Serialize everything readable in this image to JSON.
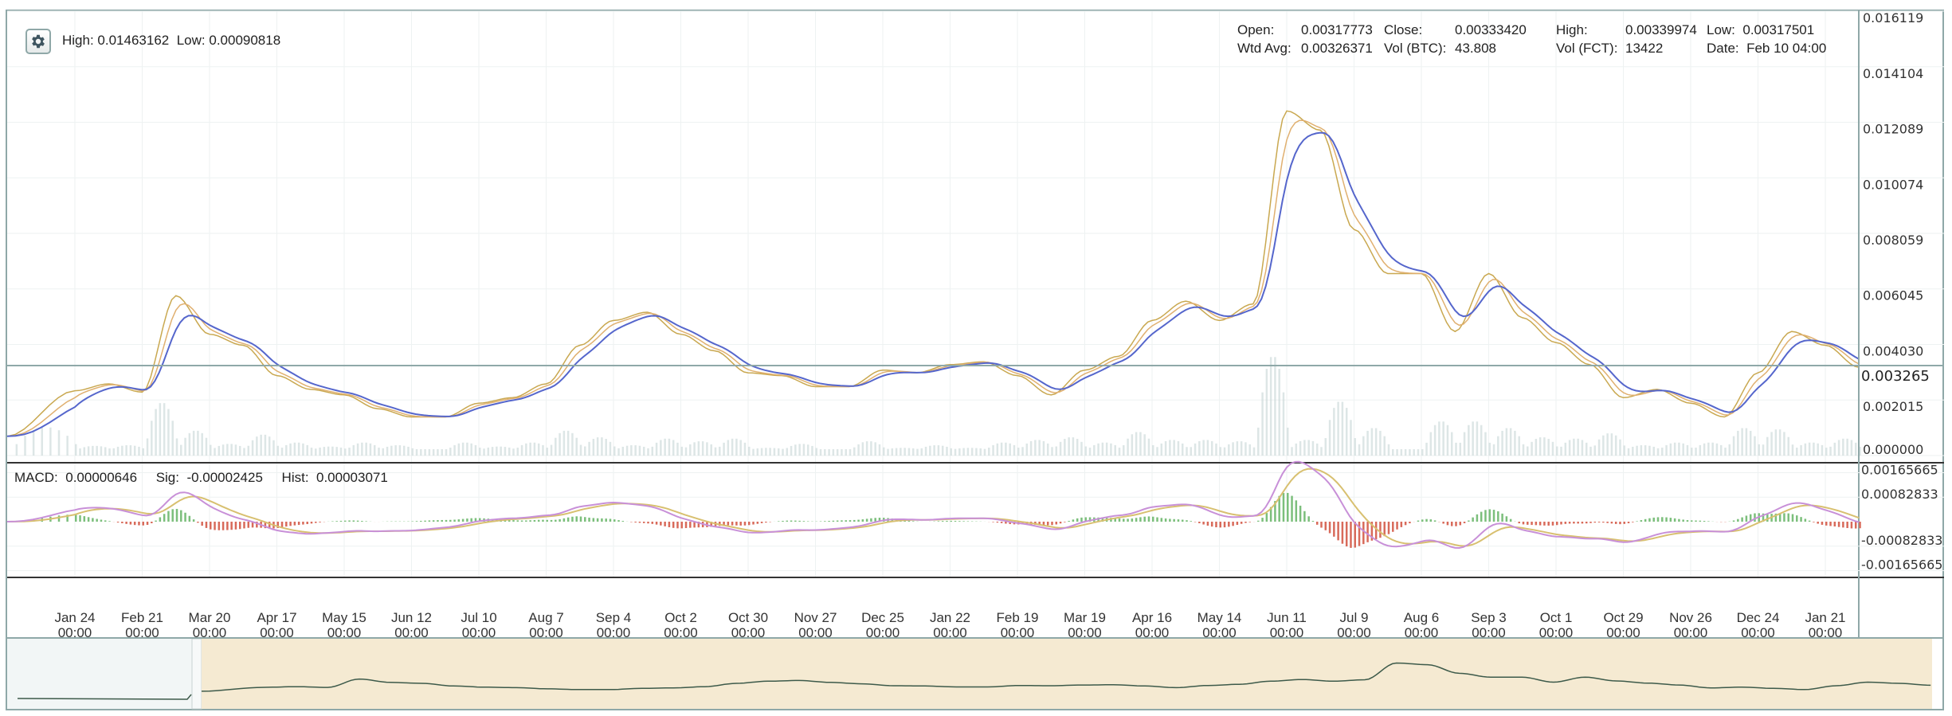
{
  "header": {
    "settings_icon": "gear-icon",
    "high_label": "High:",
    "high_value": "0.01463162",
    "low_label": "Low:",
    "low_value": "0.00090818"
  },
  "ohlc": {
    "open_label": "Open:",
    "open": "0.00317773",
    "close_label": "Close:",
    "close": "0.00333420",
    "high_label": "High:",
    "high": "0.00339974",
    "low_label": "Low:",
    "low": "0.00317501",
    "wtd_label": "Wtd Avg:",
    "wtd": "0.00326371",
    "volbtc_label": "Vol (BTC):",
    "volbtc": "43.808",
    "volfct_label": "Vol (FCT):",
    "volfct": "13422",
    "date_label": "Date:",
    "date": "Feb 10 04:00"
  },
  "macd": {
    "macd_label": "MACD:",
    "macd": "0.00000646",
    "sig_label": "Sig:",
    "sig": "-0.00002425",
    "hist_label": "Hist:",
    "hist": "0.00003071"
  },
  "colors": {
    "price": "#c9a850",
    "ma_fast": "#e0b070",
    "ma_slow": "#5566cc",
    "macd": "#c890d8",
    "signal": "#d8c070",
    "hist_pos": "#7cbf7c",
    "hist_neg": "#d86a5a",
    "volume": "#c6d6d6",
    "navigator_bg": "#f5ead2",
    "navigator_line": "#3d5a4a",
    "frame": "#8fa8a8"
  },
  "chart_data": {
    "type": "line",
    "title": "",
    "y_ticks": [
      "0.016119",
      "0.014104",
      "0.012089",
      "0.010074",
      "0.008059",
      "0.006045",
      "0.004030",
      "0.002015",
      "0.000000"
    ],
    "ylim": [
      0,
      0.016119
    ],
    "current_price_label": "0.003265",
    "current_price": 0.003265,
    "macd_ticks": [
      "0.00165665",
      "0.00082833",
      "-0.00082833",
      "-0.00165665"
    ],
    "macd_ylim": [
      -0.00165665,
      0.00165665
    ],
    "x_ticks": [
      [
        "Jan 24",
        "00:00"
      ],
      [
        "Feb 21",
        "00:00"
      ],
      [
        "Mar 20",
        "00:00"
      ],
      [
        "Apr 17",
        "00:00"
      ],
      [
        "May 15",
        "00:00"
      ],
      [
        "Jun 12",
        "00:00"
      ],
      [
        "Jul 10",
        "00:00"
      ],
      [
        "Aug 7",
        "00:00"
      ],
      [
        "Sep 4",
        "00:00"
      ],
      [
        "Oct 2",
        "00:00"
      ],
      [
        "Oct 30",
        "00:00"
      ],
      [
        "Nov 27",
        "00:00"
      ],
      [
        "Dec 25",
        "00:00"
      ],
      [
        "Jan 22",
        "00:00"
      ],
      [
        "Feb 19",
        "00:00"
      ],
      [
        "Mar 19",
        "00:00"
      ],
      [
        "Apr 16",
        "00:00"
      ],
      [
        "May 14",
        "00:00"
      ],
      [
        "Jun 11",
        "00:00"
      ],
      [
        "Jul 9",
        "00:00"
      ],
      [
        "Aug 6",
        "00:00"
      ],
      [
        "Sep 3",
        "00:00"
      ],
      [
        "Oct 1",
        "00:00"
      ],
      [
        "Oct 29",
        "00:00"
      ],
      [
        "Nov 26",
        "00:00"
      ],
      [
        "Dec 24",
        "00:00"
      ],
      [
        "Jan 21",
        "00:00"
      ]
    ],
    "series": [
      {
        "x": [
          "Dec 27",
          "Jan 24",
          "Feb 7",
          "Feb 21",
          "Mar 6",
          "Mar 20",
          "Apr 3",
          "Apr 17",
          "May 1",
          "May 15",
          "May 29",
          "Jun 12",
          "Jun 26",
          "Jul 10",
          "Jul 24",
          "Aug 7",
          "Aug 21",
          "Sep 4",
          "Sep 18",
          "Oct 2",
          "Oct 16",
          "Oct 30",
          "Nov 13",
          "Nov 27",
          "Dec 11",
          "Dec 25",
          "Jan 8",
          "Jan 22",
          "Feb 5",
          "Feb 19",
          "Mar 5",
          "Mar 19",
          "Apr 2",
          "Apr 16",
          "Apr 30",
          "May 14",
          "May 28",
          "Jun 11",
          "Jun 25",
          "Jul 9",
          "Jul 23",
          "Aug 6",
          "Aug 20",
          "Sep 3",
          "Sep 17",
          "Oct 1",
          "Oct 15",
          "Oct 29",
          "Nov 12",
          "Nov 26",
          "Dec 10",
          "Dec 24",
          "Jan 7",
          "Jan 21",
          "Feb 10"
        ],
        "values": [
          0.0007,
          0.00235,
          0.0026,
          0.0023,
          0.0058,
          0.0044,
          0.004,
          0.0029,
          0.0024,
          0.0022,
          0.0017,
          0.0014,
          0.0014,
          0.0019,
          0.0021,
          0.0026,
          0.004,
          0.0049,
          0.0052,
          0.0044,
          0.0038,
          0.003,
          0.0029,
          0.0025,
          0.0025,
          0.0031,
          0.003,
          0.0033,
          0.0034,
          0.0029,
          0.0022,
          0.0031,
          0.0036,
          0.0049,
          0.0056,
          0.0049,
          0.0055,
          0.0125,
          0.0118,
          0.0082,
          0.0066,
          0.0066,
          0.0045,
          0.0066,
          0.005,
          0.0041,
          0.0033,
          0.0021,
          0.0024,
          0.0019,
          0.0014,
          0.003,
          0.0045,
          0.004,
          0.0032
        ]
      }
    ]
  }
}
